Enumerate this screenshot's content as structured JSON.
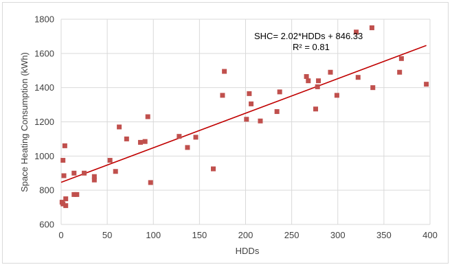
{
  "chart_data": {
    "type": "scatter",
    "xlabel": "HDDs",
    "ylabel": "Space Heating Consumption (kWh)",
    "xlim": [
      0,
      400
    ],
    "ylim": [
      600,
      1800
    ],
    "xticks": [
      0,
      50,
      100,
      150,
      200,
      250,
      300,
      350,
      400
    ],
    "yticks": [
      600,
      800,
      1000,
      1200,
      1400,
      1600,
      1800
    ],
    "grid": true,
    "colors": {
      "points": "#c0504d",
      "trendline": "#c00000"
    },
    "points": [
      [
        1,
        730
      ],
      [
        2,
        720
      ],
      [
        2,
        975
      ],
      [
        3,
        885
      ],
      [
        4,
        1060
      ],
      [
        5,
        750
      ],
      [
        5,
        710
      ],
      [
        14,
        775
      ],
      [
        14,
        900
      ],
      [
        17,
        775
      ],
      [
        25,
        900
      ],
      [
        36,
        860
      ],
      [
        36,
        880
      ],
      [
        53,
        975
      ],
      [
        59,
        910
      ],
      [
        63,
        1170
      ],
      [
        71,
        1100
      ],
      [
        86,
        1080
      ],
      [
        91,
        1085
      ],
      [
        94,
        1230
      ],
      [
        97,
        845
      ],
      [
        128,
        1115
      ],
      [
        137,
        1050
      ],
      [
        146,
        1110
      ],
      [
        165,
        925
      ],
      [
        175,
        1355
      ],
      [
        177,
        1495
      ],
      [
        201,
        1215
      ],
      [
        204,
        1365
      ],
      [
        206,
        1305
      ],
      [
        216,
        1205
      ],
      [
        234,
        1260
      ],
      [
        237,
        1375
      ],
      [
        266,
        1465
      ],
      [
        268,
        1440
      ],
      [
        276,
        1275
      ],
      [
        278,
        1405
      ],
      [
        279,
        1440
      ],
      [
        292,
        1490
      ],
      [
        299,
        1355
      ],
      [
        320,
        1725
      ],
      [
        322,
        1460
      ],
      [
        337,
        1750
      ],
      [
        338,
        1400
      ],
      [
        367,
        1490
      ],
      [
        369,
        1570
      ],
      [
        396,
        1420
      ]
    ],
    "trendline": {
      "slope": 2.02,
      "intercept": 846.33,
      "x_range": [
        0,
        396
      ]
    },
    "annotation_equation": "SHC= 2.02*HDDs + 846.33",
    "annotation_r2": "R² = 0.81"
  }
}
